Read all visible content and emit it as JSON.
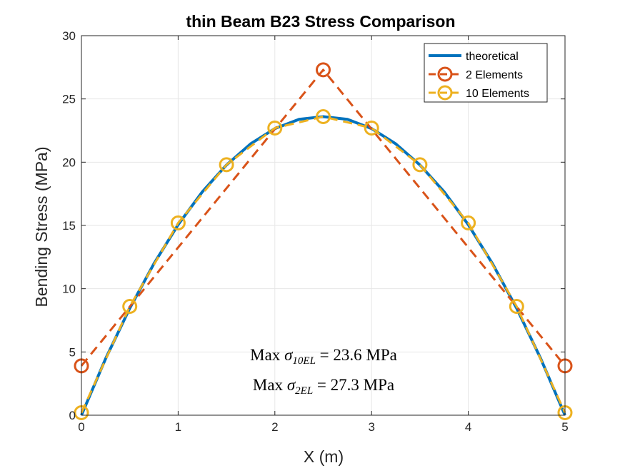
{
  "chart_data": {
    "type": "line",
    "title": "thin Beam B23 Stress Comparison",
    "xlabel": "X (m)",
    "ylabel": "Bending Stress (MPa)",
    "xlim": [
      0,
      5
    ],
    "ylim": [
      0,
      30
    ],
    "xticks": [
      0,
      1,
      2,
      3,
      4,
      5
    ],
    "yticks": [
      0,
      5,
      10,
      15,
      20,
      25,
      30
    ],
    "grid": true,
    "legend_position": "top-right",
    "series": [
      {
        "name": "theoretical",
        "color": "#0072BD",
        "style": "solid",
        "x": [
          0,
          0.25,
          0.5,
          0.75,
          1,
          1.25,
          1.5,
          1.75,
          2,
          2.25,
          2.5,
          2.75,
          3,
          3.25,
          3.5,
          3.75,
          4,
          4.25,
          4.5,
          4.75,
          5
        ],
        "y": [
          0,
          4.46,
          8.46,
          11.99,
          15.06,
          17.66,
          19.78,
          21.45,
          22.66,
          23.39,
          23.6,
          23.39,
          22.66,
          21.45,
          19.78,
          17.66,
          15.06,
          11.99,
          8.46,
          4.46,
          0
        ]
      },
      {
        "name": "2 Elements",
        "color": "#D95319",
        "style": "dashed",
        "marker": "circle",
        "x": [
          0,
          2.5,
          5
        ],
        "y": [
          3.9,
          27.3,
          3.9
        ]
      },
      {
        "name": "10 Elements",
        "color": "#EDB120",
        "style": "dashed",
        "marker": "circle",
        "x": [
          0,
          0.5,
          1,
          1.5,
          2,
          2.5,
          3,
          3.5,
          4,
          4.5,
          5
        ],
        "y": [
          0.2,
          8.6,
          15.2,
          19.8,
          22.7,
          23.6,
          22.7,
          19.8,
          15.2,
          8.6,
          0.2
        ]
      }
    ],
    "annotations": {
      "line1_prefix": "Max ",
      "line1_sym": "σ",
      "line1_sub": "10EL",
      "line1_suffix": " = 23.6 MPa",
      "line2_prefix": "Max ",
      "line2_sym": "σ",
      "line2_sub": "2EL",
      "line2_suffix": " = 27.3 MPa"
    }
  }
}
